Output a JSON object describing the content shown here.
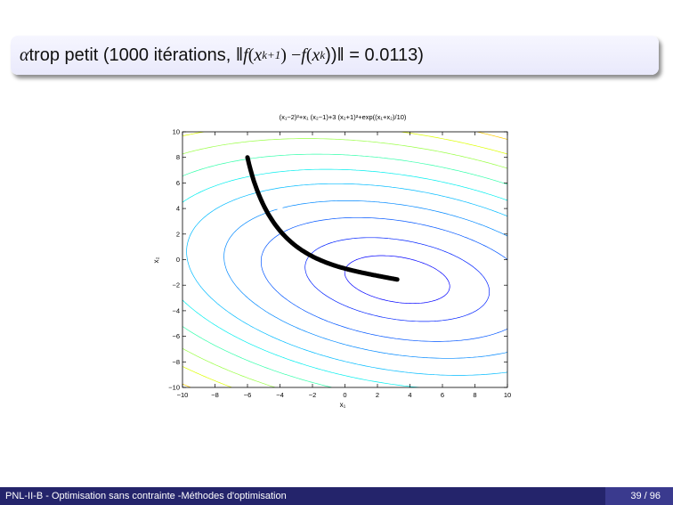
{
  "slide": {
    "title_alpha": "α",
    "title_text_1": " trop petit (1000 itérations, ‖",
    "title_f1": "f",
    "title_paren_open_1": "(",
    "title_x1": "x",
    "title_sub1": "k+1",
    "title_paren_close_minus": ") − ",
    "title_f2": "f",
    "title_paren_open_2": "(",
    "title_x2": "x",
    "title_sub2": "k",
    "title_text_end": "))‖ = 0.0113)",
    "footer_left": "PNL-II-B - Optimisation sans contrainte -Méthodes d'optimisation",
    "footer_page": "39 / 96"
  },
  "chart_data": {
    "type": "contour",
    "title": "(x₁−2)²+x₁ (x₂−1)+3 (x₂+1)²+exp((x₁+x₂)/10)",
    "xlabel": "x₁",
    "ylabel": "x₂",
    "xlim": [
      -10,
      10
    ],
    "ylim": [
      -10,
      10
    ],
    "xticks": [
      -10,
      -8,
      -6,
      -4,
      -2,
      0,
      2,
      4,
      6,
      8,
      10
    ],
    "yticks": [
      -10,
      -8,
      -6,
      -4,
      -2,
      0,
      2,
      4,
      6,
      8,
      10
    ],
    "xtick_labels": [
      "−10",
      "−8",
      "−6",
      "−4",
      "−2",
      "0",
      "2",
      "4",
      "6",
      "8",
      "10"
    ],
    "ytick_labels": [
      "−10",
      "−8",
      "−6",
      "−4",
      "−2",
      "0",
      "2",
      "4",
      "6",
      "8",
      "10"
    ],
    "contour_levels": [
      5,
      25,
      60,
      100,
      150,
      200,
      260,
      330,
      400,
      480,
      560,
      650
    ],
    "contour_colors": [
      "#0000ff",
      "#0022ff",
      "#0055ff",
      "#0088ff",
      "#00bbff",
      "#00eeee",
      "#33ffaa",
      "#99ff44",
      "#ddff00",
      "#ffcc00",
      "#ff7700",
      "#ff2200",
      "#cc0000"
    ],
    "path": {
      "start": [
        -6,
        8
      ],
      "end": [
        1.3,
        -0.9
      ],
      "iterations": 1000,
      "color": "#000000"
    }
  }
}
